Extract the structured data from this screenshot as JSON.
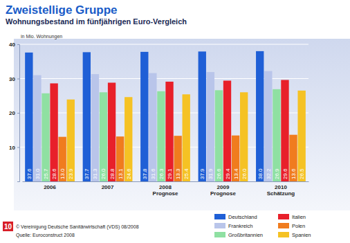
{
  "chart_data": {
    "type": "bar",
    "title": "Zweistellige Gruppe",
    "subtitle": "Wohnungsbestand im fünfjährigen Euro-Vergleich",
    "y_label": "in Mio. Wohnungen",
    "categories": [
      "2006",
      "2007",
      "2008 Prognose",
      "2009 Prognose",
      "2010 Schätzung"
    ],
    "series": [
      {
        "name": "Deutschland",
        "color": "#1f5fd6",
        "values": [
          37.6,
          37.7,
          37.8,
          37.9,
          38.0
        ],
        "value_labels": [
          "37.6",
          "37.7",
          "37.8",
          "37.9",
          "38.0"
        ]
      },
      {
        "name": "Frankreich",
        "color": "#b9c5ea",
        "values": [
          31.0,
          31.3,
          31.6,
          31.9,
          32.2
        ],
        "value_labels": [
          "31.0",
          "31.3",
          "31.6",
          "31.9",
          "32.2"
        ]
      },
      {
        "name": "Großbritannien",
        "color": "#8fe0a2",
        "values": [
          25.7,
          26.0,
          26.3,
          26.6,
          26.9
        ],
        "value_labels": [
          "25.7",
          "26.0",
          "26.3",
          "26.6",
          "26.9"
        ]
      },
      {
        "name": "Italien",
        "color": "#e8202a",
        "values": [
          28.6,
          28.8,
          29.1,
          29.4,
          29.6
        ],
        "value_labels": [
          "28.6",
          "28.8",
          "29.1",
          "29.4",
          "29.6"
        ]
      },
      {
        "name": "Polen",
        "color": "#f07c1e",
        "values": [
          13.0,
          13.1,
          13.3,
          13.4,
          13.6
        ],
        "value_labels": [
          "13.0",
          "13.1",
          "13.3",
          "13.4",
          "13.6"
        ]
      },
      {
        "name": "Spanien",
        "color": "#f5c224",
        "values": [
          23.9,
          24.6,
          25.4,
          26.0,
          26.5
        ],
        "value_labels": [
          "23.9",
          "24.6",
          "25.4",
          "26.0",
          "26.5"
        ]
      }
    ],
    "ylim": [
      0,
      40
    ],
    "yticks": [
      10,
      20,
      30,
      40
    ],
    "grid": true,
    "legend": "bottom",
    "data_labels": true,
    "annotations": [
      "10",
      "© Vereinigung Deutsche Sanitärwirtschaft (VDS) 08/2008",
      "Quelle: Euroconstruct 2008"
    ]
  }
}
